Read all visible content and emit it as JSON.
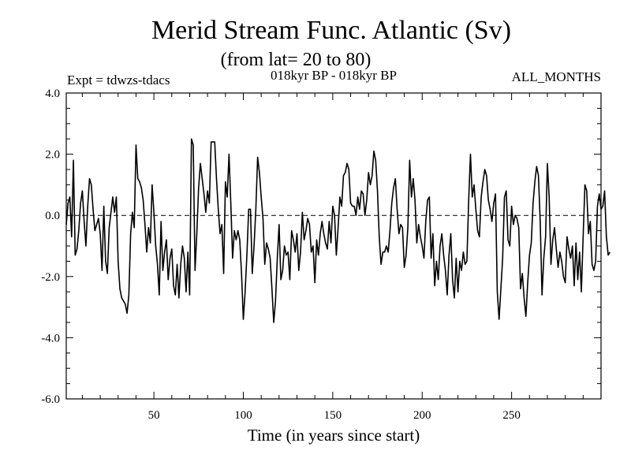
{
  "chart_data": {
    "type": "line",
    "title": "Merid Stream Func. Atlantic (Sv)",
    "subtitle": "(from lat= 20 to 80)",
    "experiment_label": "Expt = tdwzs-tdacs",
    "period_label": "018kyr BP - 018kyr BP",
    "months_label": "ALL_MONTHS",
    "xlabel": "Time (in years since start)",
    "ylabel": "",
    "xlim": [
      1,
      300
    ],
    "ylim": [
      -6,
      4
    ],
    "x_ticks": [
      50,
      100,
      150,
      200,
      250
    ],
    "x_tick_labels": [
      "50",
      "100",
      "150",
      "200",
      "250"
    ],
    "y_ticks": [
      -6,
      -4,
      -2,
      0,
      2,
      4
    ],
    "y_tick_labels": [
      "-6.0",
      "-4.0",
      "-2.0",
      "0.0",
      "2.0",
      "4.0"
    ],
    "zero_line": "dashed",
    "grid": false,
    "series": [
      {
        "name": "Merid Stream Func. Atlantic",
        "color": "#000000",
        "x_start": 1,
        "x_step": 1,
        "values": [
          -0.3,
          0.4,
          0.6,
          -0.7,
          1.8,
          -1.3,
          -1.1,
          -0.5,
          0.4,
          0.8,
          -0.2,
          -1.0,
          0.3,
          1.2,
          1.0,
          0.2,
          -0.5,
          -0.3,
          -0.1,
          -0.6,
          -1.8,
          0.3,
          -1.5,
          -1.9,
          -0.4,
          0.1,
          0.6,
          0.1,
          0.6,
          -1.5,
          -2.4,
          -2.7,
          -2.8,
          -2.9,
          -3.2,
          -2.6,
          -0.6,
          0.1,
          -0.4,
          2.3,
          1.2,
          1.1,
          0.9,
          0.5,
          -0.3,
          -1.2,
          -0.4,
          -0.9,
          1.0,
          0.1,
          -1.0,
          -1.6,
          -2.6,
          -0.2,
          -1.8,
          -1.2,
          -0.8,
          -2.1,
          -1.4,
          -1.1,
          -2.3,
          -2.6,
          -1.6,
          -2.7,
          -1.6,
          -1.0,
          -1.4,
          -2.5,
          -1.2,
          -2.6,
          2.5,
          2.3,
          -1.8,
          -0.6,
          0.9,
          1.7,
          1.2,
          0.7,
          0.1,
          0.8,
          0.4,
          2.4,
          2.4,
          2.4,
          1.2,
          0.2,
          -0.6,
          -0.3,
          -1.9,
          1.1,
          0.6,
          2.0,
          0.4,
          -1.4,
          -0.5,
          -0.8,
          -0.5,
          -0.8,
          -1.9,
          -3.4,
          -2.5,
          -1.3,
          0.2,
          0.2,
          -1.9,
          -1.0,
          0.2,
          1.9,
          1.4,
          0.6,
          -0.1,
          -1.6,
          -0.9,
          -1.1,
          -1.4,
          -2.4,
          -3.5,
          -2.8,
          -1.4,
          -0.3,
          -2.1,
          -1.8,
          -1.0,
          -1.3,
          -1.2,
          -2.1,
          -0.5,
          -0.8,
          -1.2,
          -0.6,
          -1.8,
          -1.2,
          0.1,
          -0.8,
          -0.5,
          -0.1,
          -0.3,
          -1.2,
          -1.0,
          -2.2,
          -0.8,
          -1.3,
          -0.6,
          -0.2,
          -0.6,
          -0.9,
          -1.1,
          -0.2,
          -0.9,
          0.3,
          0.0,
          -1.3,
          -0.4,
          0.6,
          0.3,
          1.3,
          1.4,
          1.7,
          1.5,
          0.4,
          0.3,
          0.3,
          0.0,
          0.6,
          0.2,
          0.8,
          0.7,
          0.0,
          0.5,
          1.4,
          1.0,
          1.3,
          2.1,
          1.8,
          0.8,
          -0.7,
          -1.6,
          -1.2,
          -1.2,
          -1.0,
          -1.2,
          -0.5,
          0.4,
          0.9,
          1.2,
          0.2,
          -0.6,
          -0.3,
          -0.4,
          -1.7,
          -1.3,
          -0.4,
          1.8,
          0.6,
          1.2,
          0.5,
          -0.9,
          -0.3,
          -0.7,
          -1.0,
          -1.4,
          -0.2,
          0.5,
          0.6,
          -1.4,
          -0.6,
          -2.3,
          -1.5,
          -2.1,
          -1.0,
          -0.6,
          -1.3,
          -1.8,
          -2.6,
          -1.3,
          -0.6,
          -2.1,
          -2.7,
          -1.4,
          -2.5,
          -1.5,
          -1.8,
          -1.2,
          -1.6,
          -1.5,
          0.5,
          2.0,
          0.6,
          1.0,
          0.2,
          -0.5,
          -0.7,
          0.6,
          1.1,
          1.5,
          1.3,
          0.5,
          0.2,
          -0.2,
          0.4,
          0.7,
          -2.5,
          -3.4,
          -2.4,
          -1.4,
          0.6,
          0.8,
          -0.8,
          -1.0,
          0.3,
          -0.3,
          0.0,
          -0.1,
          -0.4,
          -2.4,
          -1.9,
          -2.7,
          -3.3,
          -2.2,
          -1.3,
          -0.9,
          0.4,
          1.1,
          1.6,
          1.3,
          -0.2,
          -2.6,
          -1.4,
          -0.7,
          1.7,
          0.6,
          -1.6,
          -0.8,
          -0.4,
          -1.1,
          -1.7,
          -1.2,
          -1.5,
          -2.0,
          -2.2,
          -0.7,
          -1.1,
          -1.4,
          -1.0,
          -2.3,
          -0.9,
          -2.1,
          -1.2,
          -2.5,
          -0.7,
          1.0,
          0.8,
          -0.6,
          -0.2,
          -1.6,
          -1.8,
          -1.5,
          0.3,
          0.7,
          0.2,
          0.3,
          0.8,
          -0.7,
          -1.3,
          -1.2
        ]
      }
    ]
  }
}
